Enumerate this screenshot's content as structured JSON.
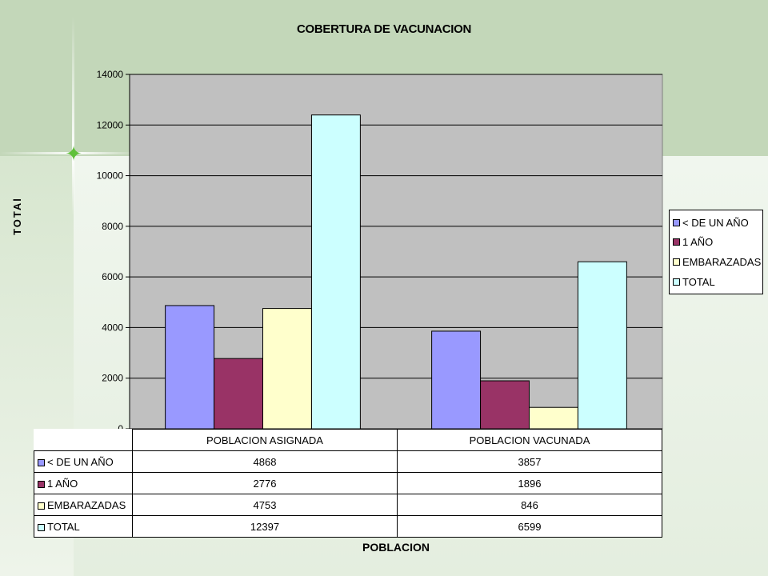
{
  "colors": {
    "lt_un_ano": "#9999ff",
    "un_ano": "#993366",
    "embarazadas": "#ffffcc",
    "total": "#ccffff",
    "plot_bg": "#c0c0c0"
  },
  "chart_data": {
    "type": "bar",
    "title": "COBERTURA DE VACUNACION",
    "xlabel": "POBLACION",
    "ylabel": "TOTAl",
    "categories": [
      "POBLACION ASIGNADA",
      "POBLACION VACUNADA"
    ],
    "series": [
      {
        "name": "< DE UN AÑO",
        "values": [
          4868,
          3857
        ]
      },
      {
        "name": "1 AÑO",
        "values": [
          2776,
          1896
        ]
      },
      {
        "name": "EMBARAZADAS",
        "values": [
          4753,
          846
        ]
      },
      {
        "name": "TOTAL",
        "values": [
          12397,
          6599
        ]
      }
    ],
    "ylim": [
      0,
      14000
    ],
    "yticks": [
      0,
      2000,
      4000,
      6000,
      8000,
      10000,
      12000,
      14000
    ],
    "grid": true,
    "legend": "right",
    "data_table": true
  }
}
